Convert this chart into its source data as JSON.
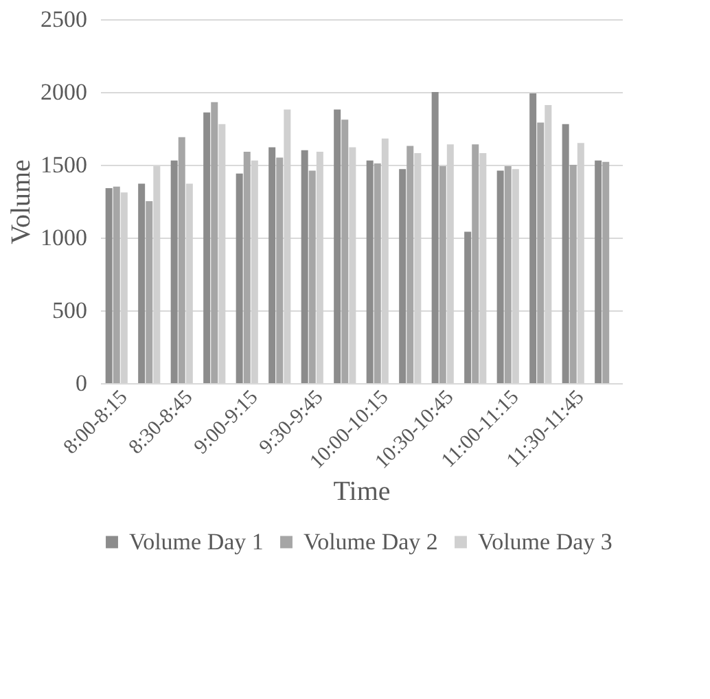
{
  "chart_data": {
    "type": "bar",
    "xlabel": "Time",
    "ylabel": "Volume",
    "categories": [
      "8:00-8:15",
      null,
      "8:30-8:45",
      null,
      "9:00-9:15",
      null,
      "9:30-9:45",
      null,
      "10:00-10:15",
      null,
      "10:30-10:45",
      null,
      "11:00-11:15",
      null,
      "11:30-11:45",
      null
    ],
    "series": [
      {
        "name": "Volume Day 1",
        "color": "#8c8c8c",
        "values": [
          1340,
          1370,
          1530,
          1860,
          1440,
          1620,
          1600,
          1880,
          1530,
          1470,
          2000,
          1040,
          1460,
          1990,
          1780,
          1530
        ]
      },
      {
        "name": "Volume Day 2",
        "color": "#a6a6a6",
        "values": [
          1350,
          1250,
          1690,
          1930,
          1590,
          1550,
          1460,
          1810,
          1510,
          1630,
          1490,
          1640,
          1490,
          1790,
          1500,
          1520
        ]
      },
      {
        "name": "Volume Day 3",
        "color": "#d0d0d0",
        "values": [
          1310,
          1490,
          1370,
          1780,
          1530,
          1880,
          1590,
          1620,
          1680,
          1580,
          1640,
          1580,
          1470,
          1910,
          1650,
          null
        ]
      }
    ],
    "ylim": [
      0,
      2500
    ],
    "yticks": [
      0,
      500,
      1000,
      1500,
      2000,
      2500
    ],
    "grid": "y",
    "legend": "bottom"
  }
}
